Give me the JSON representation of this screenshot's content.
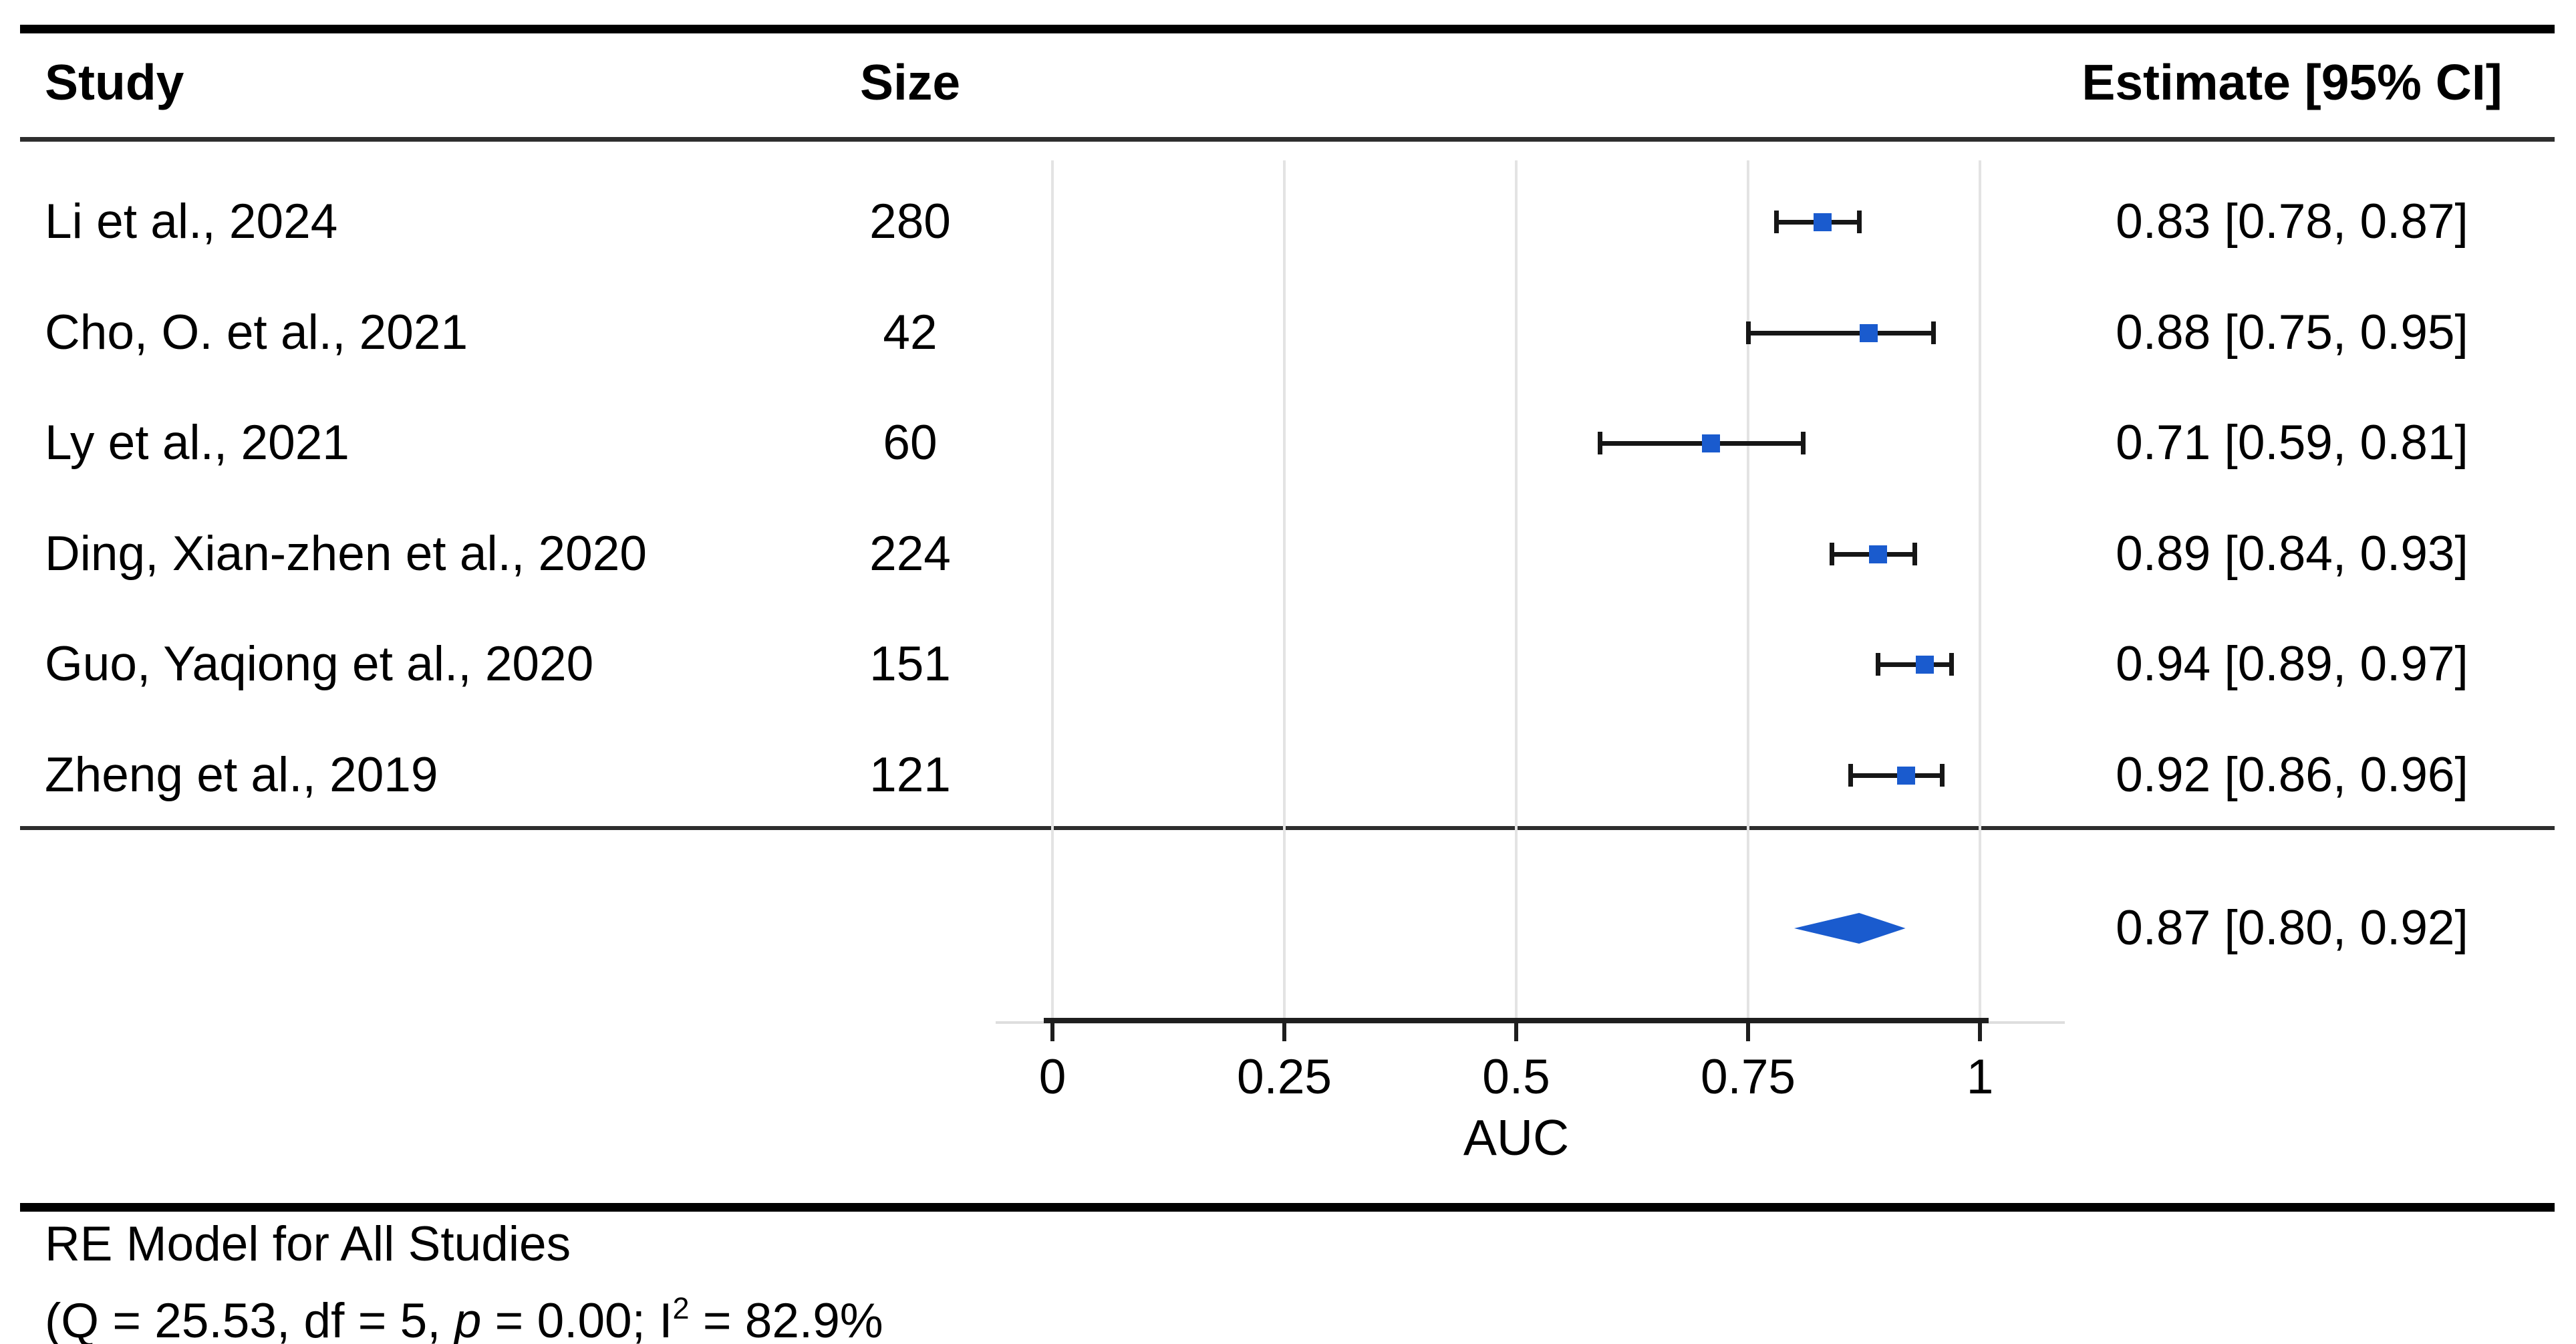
{
  "chart_data": {
    "type": "scatter",
    "plot_style": "forest-plot",
    "title": "",
    "xlabel": "AUC",
    "ylabel": "",
    "xlim": [
      0,
      1
    ],
    "x_ticks": [
      0,
      0.25,
      0.5,
      0.75,
      1
    ],
    "x_tick_labels": [
      "0",
      "0.25",
      "0.5",
      "0.75",
      "1"
    ],
    "grid": true,
    "legend": "none",
    "columns": [
      "Study",
      "Size",
      "Estimate [95% CI]"
    ],
    "studies": [
      {
        "study": "Li et al., 2024",
        "size": 280,
        "estimate": 0.83,
        "ci_low": 0.78,
        "ci_high": 0.87,
        "estimate_label": "0.83 [0.78, 0.87]"
      },
      {
        "study": "Cho, O. et al., 2021",
        "size": 42,
        "estimate": 0.88,
        "ci_low": 0.75,
        "ci_high": 0.95,
        "estimate_label": "0.88 [0.75, 0.95]"
      },
      {
        "study": "Ly et al., 2021",
        "size": 60,
        "estimate": 0.71,
        "ci_low": 0.59,
        "ci_high": 0.81,
        "estimate_label": "0.71 [0.59, 0.81]"
      },
      {
        "study": "Ding, Xian-zhen et al., 2020",
        "size": 224,
        "estimate": 0.89,
        "ci_low": 0.84,
        "ci_high": 0.93,
        "estimate_label": "0.89 [0.84, 0.93]"
      },
      {
        "study": "Guo, Yaqiong et al., 2020",
        "size": 151,
        "estimate": 0.94,
        "ci_low": 0.89,
        "ci_high": 0.97,
        "estimate_label": "0.94 [0.89, 0.97]"
      },
      {
        "study": "Zheng et al., 2019",
        "size": 121,
        "estimate": 0.92,
        "ci_low": 0.86,
        "ci_high": 0.96,
        "estimate_label": "0.92 [0.86, 0.96]"
      }
    ],
    "summary": {
      "estimate": 0.87,
      "ci_low": 0.8,
      "ci_high": 0.92,
      "estimate_label": "0.87 [0.80, 0.92]"
    }
  },
  "footer": {
    "model_label": "RE Model for All Studies",
    "stats_prefix": "(Q = 25.53, df = 5, ",
    "stats_p_symbol": "p",
    "stats_mid": " = 0.00; I",
    "stats_sup": "2",
    "stats_suffix": " = 82.9%"
  },
  "colors": {
    "marker_blue": "#1a5bce",
    "whisker_black": "#161616",
    "gridline_gray": "#e3e3e3",
    "rule_black": "#000000"
  }
}
